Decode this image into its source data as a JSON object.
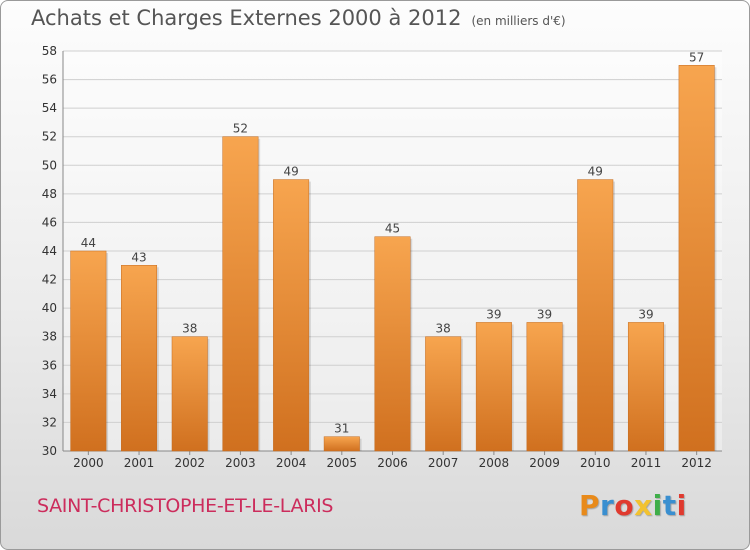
{
  "header": {
    "title": "Achats et Charges Externes 2000 à 2012",
    "unit": "(en milliers d'€)"
  },
  "footer": {
    "commune": "SAINT-CHRISTOPHE-ET-LE-LARIS",
    "logo_letters": [
      "P",
      "r",
      "o",
      "x",
      "i",
      "t",
      "i"
    ],
    "logo_colors": [
      "#e88a1a",
      "#3a8fd0",
      "#e03a2f",
      "#f2c230",
      "#3fae49",
      "#3a8fd0",
      "#e03a2f"
    ]
  },
  "colors": {
    "bar_light": "#f7a54f",
    "bar_dark": "#d0701f",
    "grid": "#cfcfcf",
    "axis_text": "#333333",
    "label_text": "#444444"
  },
  "chart_data": {
    "type": "bar",
    "title": "Achats et Charges Externes 2000 à 2012",
    "subtitle": "(en milliers d'€)",
    "categories": [
      "2000",
      "2001",
      "2002",
      "2003",
      "2004",
      "2005",
      "2006",
      "2007",
      "2008",
      "2009",
      "2010",
      "2011",
      "2012"
    ],
    "values": [
      44,
      43,
      38,
      52,
      49,
      31,
      45,
      38,
      39,
      39,
      49,
      39,
      57
    ],
    "ylim": [
      30,
      58
    ],
    "yticks": [
      30,
      32,
      34,
      36,
      38,
      40,
      42,
      44,
      46,
      48,
      50,
      52,
      54,
      56,
      58
    ],
    "grid": true,
    "data_labels": true
  }
}
